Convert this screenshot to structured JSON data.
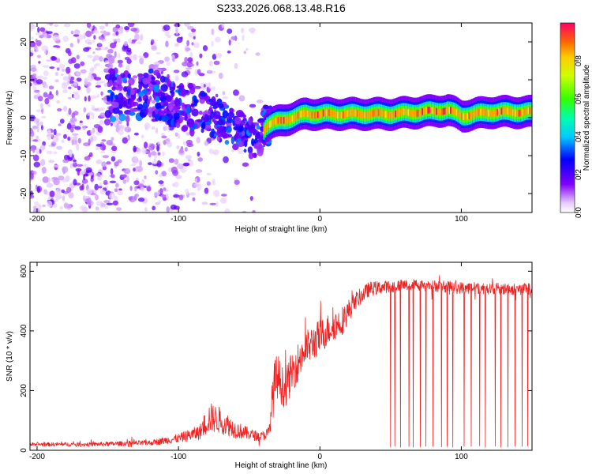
{
  "title": "S233.2026.068.13.48.R16",
  "colors": {
    "snr_line": "#ee2222",
    "axis": "#000000",
    "background": "#ffffff"
  },
  "chart_data": [
    {
      "type": "heatmap",
      "title": "S233.2026.068.13.48.R16",
      "xlabel": "Height of straight line (km)",
      "ylabel": "Frequency (Hz)",
      "xlim": [
        -205,
        150
      ],
      "ylim": [
        -25,
        25
      ],
      "xticks": [
        -200,
        -100,
        0,
        100
      ],
      "xtick_labels": [
        "-200",
        "-100",
        "0",
        "100"
      ],
      "yticks": [
        -20,
        -10,
        0,
        10,
        20
      ],
      "ytick_labels": [
        "-20",
        "-10",
        "0",
        "10",
        "20"
      ],
      "colorbar": {
        "label": "Normalized spectral amplitude",
        "range": [
          0,
          1
        ],
        "ticks": [
          0.0,
          0.2,
          0.4,
          0.6,
          0.8
        ],
        "tick_labels": [
          "0.0",
          "0.2",
          "0.4",
          "0.6",
          "0.8"
        ]
      },
      "description_points": {
        "ridge_frequency_hz": [
          [
            -120,
            6
          ],
          [
            -100,
            4
          ],
          [
            -80,
            1
          ],
          [
            -60,
            -3
          ],
          [
            -45,
            -6
          ],
          [
            -38,
            -2
          ],
          [
            -30,
            -1
          ],
          [
            -20,
            0
          ],
          [
            -10,
            1
          ],
          [
            0,
            1
          ],
          [
            20,
            1
          ],
          [
            50,
            1
          ],
          [
            70,
            1.5
          ],
          [
            90,
            2
          ],
          [
            100,
            0.5
          ],
          [
            120,
            1.5
          ],
          [
            150,
            1.5
          ]
        ]
      }
    },
    {
      "type": "line",
      "xlabel": "Height of straight line (km)",
      "ylabel": "SNR (10 * v/v)",
      "xlim": [
        -205,
        150
      ],
      "ylim": [
        0,
        630
      ],
      "xticks": [
        -200,
        -100,
        0,
        100
      ],
      "xtick_labels": [
        "-200",
        "-100",
        "0",
        "100"
      ],
      "yticks": [
        0,
        200,
        400,
        600
      ],
      "ytick_labels": [
        "0",
        "200",
        "400",
        "600"
      ],
      "envelope": {
        "x": [
          -205,
          -160,
          -120,
          -100,
          -85,
          -78,
          -70,
          -60,
          -50,
          -42,
          -36,
          -33,
          -30,
          -25,
          -20,
          -10,
          0,
          10,
          15,
          25,
          35,
          50,
          70,
          100,
          130,
          150
        ],
        "mean": [
          20,
          20,
          25,
          40,
          60,
          110,
          100,
          70,
          55,
          45,
          60,
          200,
          250,
          200,
          260,
          340,
          380,
          420,
          430,
          500,
          540,
          550,
          555,
          545,
          540,
          540
        ],
        "amp": [
          6,
          7,
          9,
          15,
          25,
          50,
          45,
          30,
          20,
          15,
          20,
          90,
          80,
          60,
          70,
          60,
          60,
          50,
          50,
          30,
          25,
          20,
          20,
          20,
          20,
          20
        ]
      },
      "dropouts_km": [
        50,
        53,
        57,
        63,
        66,
        71,
        75,
        80,
        86,
        90,
        94,
        102,
        107,
        113,
        117,
        124,
        128,
        133,
        138,
        143,
        147
      ],
      "dropout_floor": 10
    }
  ]
}
